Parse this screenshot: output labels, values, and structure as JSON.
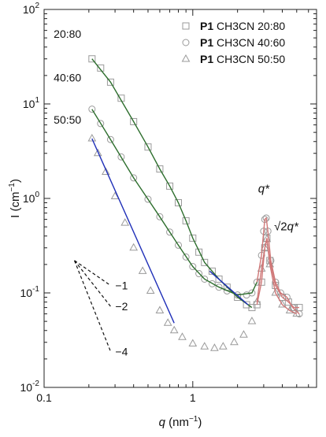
{
  "chart_data": {
    "type": "scatter",
    "title": "",
    "xlabel": {
      "var": "q",
      "unit": "(nm",
      "exp": "−1",
      "close": ")"
    },
    "ylabel": {
      "var": "I",
      "unit": "(cm",
      "exp": "−1",
      "close": ")"
    },
    "xscale": "log",
    "yscale": "log",
    "xlim": [
      0.1,
      6.8
    ],
    "ylim": [
      0.01,
      100
    ],
    "x_ticks": [
      {
        "v": 0.1,
        "label": "0.1"
      },
      {
        "v": 1,
        "label": "1"
      }
    ],
    "y_ticks": [
      {
        "v": 0.01,
        "base": "10",
        "exp": "-2"
      },
      {
        "v": 0.1,
        "base": "10",
        "exp": "-1"
      },
      {
        "v": 1,
        "base": "10",
        "exp": "0"
      },
      {
        "v": 10,
        "base": "10",
        "exp": "1"
      },
      {
        "v": 100,
        "base": "10",
        "exp": "2"
      }
    ],
    "legend": {
      "position": "top-right",
      "entries": [
        {
          "bold": "P1",
          "text": "CH3CN 20:80",
          "marker": "square"
        },
        {
          "bold": "P1",
          "text": "CH3CN 40:60",
          "marker": "circle"
        },
        {
          "bold": "P1",
          "text": "CH3CN 50:50",
          "marker": "triangle"
        }
      ]
    },
    "series_labels": [
      {
        "text": "20:80",
        "q": 0.116,
        "I": 55
      },
      {
        "text": "40:60",
        "q": 0.116,
        "I": 19
      },
      {
        "text": "50:50",
        "q": 0.116,
        "I": 6.8
      }
    ],
    "series": [
      {
        "name": "CH3CN 20:80",
        "marker": "square",
        "marker_color": "#9a9a9a",
        "x": [
          0.21,
          0.24,
          0.28,
          0.33,
          0.4,
          0.5,
          0.6,
          0.7,
          0.8,
          0.9,
          1.0,
          1.1,
          1.2,
          1.35,
          1.5,
          1.7,
          2.0,
          2.3,
          2.5,
          2.7,
          2.9,
          3.05,
          3.15,
          3.3,
          3.6,
          4.0,
          4.4,
          4.8,
          5.2
        ],
        "y": [
          30,
          24,
          17,
          11.5,
          6.5,
          3.5,
          2.05,
          1.35,
          0.9,
          0.58,
          0.38,
          0.27,
          0.21,
          0.17,
          0.14,
          0.115,
          0.09,
          0.075,
          0.07,
          0.075,
          0.13,
          0.3,
          0.38,
          0.22,
          0.12,
          0.09,
          0.08,
          0.07,
          0.07
        ]
      },
      {
        "name": "CH3CN 40:60",
        "marker": "circle",
        "marker_color": "#9a9a9a",
        "x": [
          0.21,
          0.24,
          0.28,
          0.33,
          0.4,
          0.5,
          0.6,
          0.7,
          0.8,
          0.9,
          1.0,
          1.1,
          1.2,
          1.35,
          1.5,
          1.7,
          2.0,
          2.3,
          2.5,
          2.7,
          2.9,
          3.0,
          3.05,
          3.12,
          3.2,
          3.35,
          3.6,
          3.9,
          4.3,
          4.7,
          5.2
        ],
        "y": [
          8.8,
          6.2,
          4.2,
          2.75,
          1.65,
          0.98,
          0.64,
          0.44,
          0.32,
          0.24,
          0.19,
          0.16,
          0.14,
          0.125,
          0.115,
          0.105,
          0.095,
          0.095,
          0.1,
          0.13,
          0.25,
          0.45,
          0.6,
          0.62,
          0.45,
          0.22,
          0.13,
          0.1,
          0.09,
          0.07,
          0.06
        ]
      },
      {
        "name": "CH3CN 50:50",
        "marker": "triangle",
        "marker_color": "#9a9a9a",
        "x": [
          0.21,
          0.23,
          0.26,
          0.3,
          0.35,
          0.4,
          0.46,
          0.52,
          0.6,
          0.68,
          0.75,
          0.85,
          1.0,
          1.2,
          1.4,
          1.6,
          1.9,
          2.2,
          2.5,
          2.7,
          2.9,
          3.05,
          3.15,
          3.3,
          3.6,
          4.0,
          4.5,
          5.0
        ],
        "y": [
          4.3,
          3.0,
          1.9,
          1.05,
          0.55,
          0.3,
          0.17,
          0.105,
          0.065,
          0.048,
          0.04,
          0.034,
          0.029,
          0.027,
          0.026,
          0.027,
          0.03,
          0.036,
          0.05,
          0.08,
          0.18,
          0.3,
          0.37,
          0.2,
          0.1,
          0.075,
          0.065,
          0.06
        ]
      }
    ],
    "fit_curves": [
      {
        "name": "fit 20:80",
        "color": "#2d6e2d",
        "x": [
          0.21,
          0.28,
          0.4,
          0.5,
          0.6,
          0.7,
          0.8,
          0.9,
          1.0,
          1.2,
          1.5,
          2.0,
          2.5
        ],
        "y": [
          30,
          17,
          6.5,
          3.5,
          2.05,
          1.35,
          0.9,
          0.58,
          0.38,
          0.21,
          0.14,
          0.09,
          0.07
        ]
      },
      {
        "name": "fit 40:60",
        "color": "#2d6e2d",
        "x": [
          0.21,
          0.28,
          0.4,
          0.5,
          0.6,
          0.7,
          0.8,
          1.0,
          1.2,
          1.5,
          2.0,
          2.5,
          2.7
        ],
        "y": [
          8.8,
          4.2,
          1.65,
          0.98,
          0.64,
          0.44,
          0.32,
          0.19,
          0.14,
          0.115,
          0.095,
          0.1,
          0.13
        ]
      },
      {
        "name": "power law 50:50",
        "color": "#1f2fb8",
        "x": [
          0.21,
          0.75
        ],
        "y": [
          4.3,
          0.048
        ]
      },
      {
        "name": "power law 20:80",
        "color": "#1f2fb8",
        "x": [
          1.3,
          2.35
        ],
        "y": [
          0.17,
          0.075
        ]
      },
      {
        "name": "peak 20:80",
        "color": "#d07878",
        "x": [
          2.7,
          2.9,
          3.05,
          3.15,
          3.3,
          3.6,
          4.0,
          4.4,
          4.8,
          5.2
        ],
        "y": [
          0.075,
          0.13,
          0.3,
          0.38,
          0.22,
          0.12,
          0.09,
          0.08,
          0.07,
          0.07
        ]
      },
      {
        "name": "peak 40:60",
        "color": "#d07878",
        "x": [
          2.7,
          2.9,
          3.0,
          3.05,
          3.12,
          3.2,
          3.35,
          3.6,
          3.9,
          4.3,
          4.7,
          5.2
        ],
        "y": [
          0.13,
          0.25,
          0.45,
          0.6,
          0.62,
          0.45,
          0.22,
          0.13,
          0.1,
          0.09,
          0.07,
          0.06
        ]
      },
      {
        "name": "peak 50:50",
        "color": "#d07878",
        "x": [
          2.7,
          2.9,
          3.05,
          3.15,
          3.3,
          3.6,
          4.0,
          4.5,
          5.0
        ],
        "y": [
          0.08,
          0.18,
          0.3,
          0.37,
          0.2,
          0.1,
          0.075,
          0.065,
          0.06
        ]
      }
    ],
    "slope_lines": [
      {
        "label": "−1",
        "from": [
          0.16,
          0.22
        ],
        "to": [
          0.28,
          0.12
        ]
      },
      {
        "label": "−2",
        "from": [
          0.16,
          0.22
        ],
        "to": [
          0.28,
          0.072
        ]
      },
      {
        "label": "−4",
        "from": [
          0.16,
          0.22
        ],
        "to": [
          0.28,
          0.024
        ]
      }
    ],
    "peak_labels": [
      {
        "main": "q*",
        "q": 3.0,
        "I": 1.15
      },
      {
        "root": "√2",
        "main": "q*",
        "q": 4.25,
        "I": 0.46
      }
    ]
  }
}
